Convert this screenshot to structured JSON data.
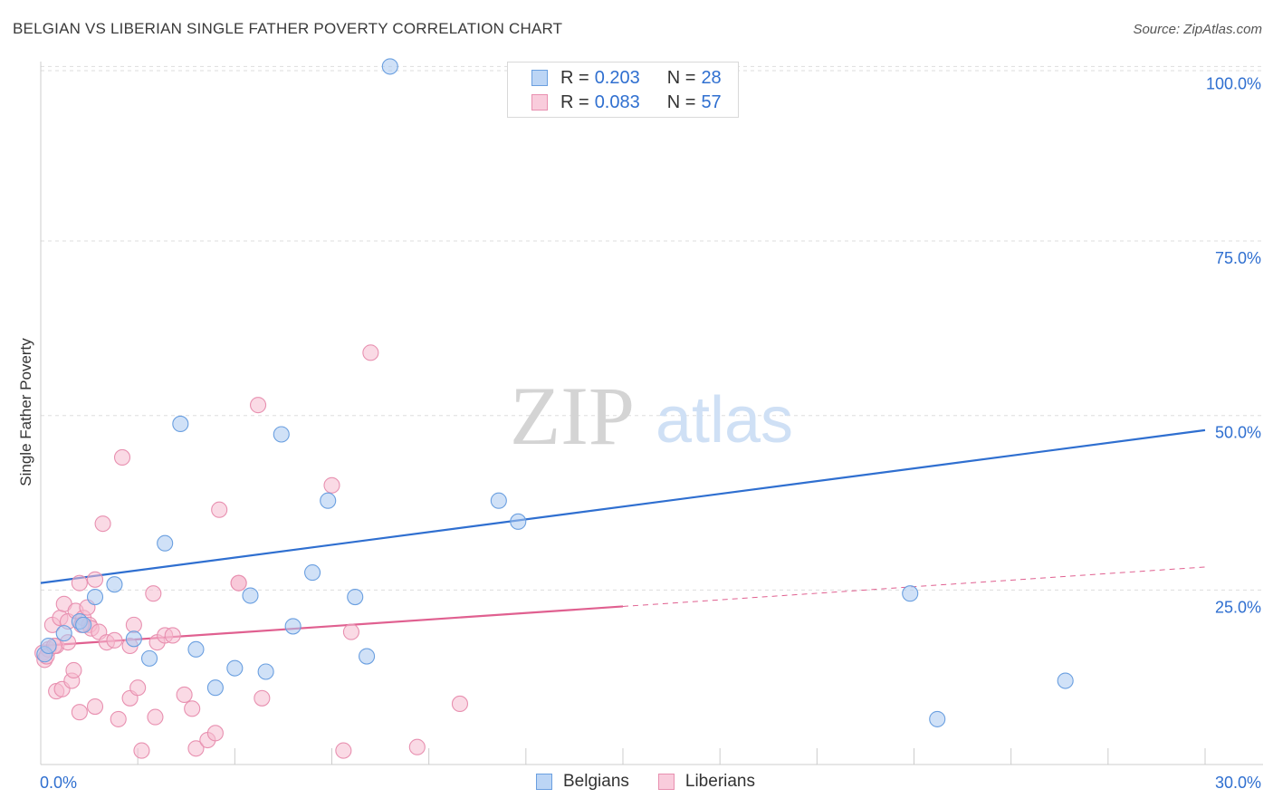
{
  "header": {
    "title": "BELGIAN VS LIBERIAN SINGLE FATHER POVERTY CORRELATION CHART",
    "source": "Source: ZipAtlas.com"
  },
  "watermark": {
    "zip": "ZIP",
    "atlas": "atlas"
  },
  "legend": {
    "belgians": {
      "r_label": "R =",
      "r_value": "0.203",
      "n_label": "N =",
      "n_value": "28"
    },
    "liberians": {
      "r_label": "R =",
      "r_value": "0.083",
      "n_label": "N =",
      "n_value": "57"
    }
  },
  "bottom_legend": {
    "belgians": "Belgians",
    "liberians": "Liberians"
  },
  "colors": {
    "belgian_fill": "#a9c8f0",
    "belgian_stroke": "#6a9fe0",
    "belgian_line": "#2f6fd0",
    "liberian_fill": "#f6bcd0",
    "liberian_stroke": "#e890b0",
    "liberian_line": "#e06090",
    "axis_text": "#2f6fd0",
    "grid": "#dddddd"
  },
  "chart_data": {
    "type": "scatter",
    "title": "BELGIAN VS LIBERIAN SINGLE FATHER POVERTY CORRELATION CHART",
    "xlabel": "",
    "ylabel": "Single Father Poverty",
    "xlim": [
      0,
      30
    ],
    "ylim": [
      0,
      102
    ],
    "x_tick_labels": [
      {
        "value": 0,
        "label": "0.0%"
      },
      {
        "value": 30,
        "label": "30.0%"
      }
    ],
    "y_tick_labels": [
      {
        "value": 25,
        "label": "25.0%"
      },
      {
        "value": 50,
        "label": "50.0%"
      },
      {
        "value": 75,
        "label": "75.0%"
      },
      {
        "value": 100,
        "label": "100.0%"
      }
    ],
    "series": [
      {
        "name": "Belgians",
        "r": 0.203,
        "n": 28,
        "trend": {
          "x": [
            0,
            30
          ],
          "y": [
            26.0,
            47.9
          ],
          "dashed_from": null
        },
        "points": [
          [
            0.1,
            15.8
          ],
          [
            0.6,
            18.8
          ],
          [
            1.0,
            20.5
          ],
          [
            1.4,
            24.0
          ],
          [
            1.9,
            25.8
          ],
          [
            2.4,
            18.0
          ],
          [
            2.8,
            15.2
          ],
          [
            3.2,
            31.7
          ],
          [
            3.6,
            48.8
          ],
          [
            4.0,
            16.5
          ],
          [
            4.5,
            11.0
          ],
          [
            5.0,
            13.8
          ],
          [
            5.4,
            24.2
          ],
          [
            5.8,
            13.3
          ],
          [
            6.2,
            47.3
          ],
          [
            6.5,
            19.8
          ],
          [
            7.0,
            27.5
          ],
          [
            7.4,
            37.8
          ],
          [
            8.1,
            24.0
          ],
          [
            8.4,
            15.5
          ],
          [
            9.0,
            100.0
          ],
          [
            11.8,
            37.8
          ],
          [
            12.3,
            34.8
          ],
          [
            22.4,
            24.5
          ],
          [
            23.1,
            6.5
          ],
          [
            26.4,
            12.0
          ],
          [
            0.2,
            17.0
          ],
          [
            1.1,
            20.0
          ]
        ]
      },
      {
        "name": "Liberians",
        "r": 0.083,
        "n": 57,
        "trend": {
          "x": [
            0,
            30
          ],
          "y": [
            17.0,
            28.3
          ],
          "dashed_from": 15
        },
        "points": [
          [
            0.05,
            16.0
          ],
          [
            0.1,
            15.0
          ],
          [
            0.2,
            16.5
          ],
          [
            0.3,
            20.0
          ],
          [
            0.4,
            17.0
          ],
          [
            0.4,
            10.5
          ],
          [
            0.5,
            21.0
          ],
          [
            0.55,
            10.8
          ],
          [
            0.6,
            23.0
          ],
          [
            0.7,
            20.5
          ],
          [
            0.7,
            17.5
          ],
          [
            0.8,
            12.0
          ],
          [
            0.85,
            13.5
          ],
          [
            0.9,
            22.0
          ],
          [
            1.0,
            26.0
          ],
          [
            1.0,
            7.5
          ],
          [
            1.1,
            21.0
          ],
          [
            1.2,
            22.5
          ],
          [
            1.25,
            20.0
          ],
          [
            1.3,
            19.5
          ],
          [
            1.4,
            8.3
          ],
          [
            1.4,
            26.5
          ],
          [
            1.5,
            19.0
          ],
          [
            1.6,
            34.5
          ],
          [
            1.7,
            17.5
          ],
          [
            1.9,
            17.8
          ],
          [
            2.0,
            6.5
          ],
          [
            2.1,
            44.0
          ],
          [
            2.3,
            17.0
          ],
          [
            2.3,
            9.5
          ],
          [
            2.4,
            20.0
          ],
          [
            2.5,
            11.0
          ],
          [
            2.6,
            2.0
          ],
          [
            2.9,
            24.5
          ],
          [
            2.95,
            6.8
          ],
          [
            3.0,
            17.5
          ],
          [
            3.2,
            18.5
          ],
          [
            3.4,
            18.5
          ],
          [
            3.7,
            10.0
          ],
          [
            3.9,
            8.0
          ],
          [
            4.0,
            2.3
          ],
          [
            4.3,
            3.5
          ],
          [
            4.5,
            4.5
          ],
          [
            4.6,
            36.5
          ],
          [
            5.1,
            26.0
          ],
          [
            5.1,
            26.0
          ],
          [
            5.6,
            51.5
          ],
          [
            5.7,
            9.5
          ],
          [
            7.5,
            40.0
          ],
          [
            7.8,
            2.0
          ],
          [
            8.0,
            19.0
          ],
          [
            8.5,
            59.0
          ],
          [
            9.7,
            2.5
          ],
          [
            10.8,
            8.7
          ],
          [
            0.15,
            15.5
          ],
          [
            0.35,
            17.0
          ],
          [
            1.05,
            20.0
          ]
        ]
      }
    ]
  }
}
